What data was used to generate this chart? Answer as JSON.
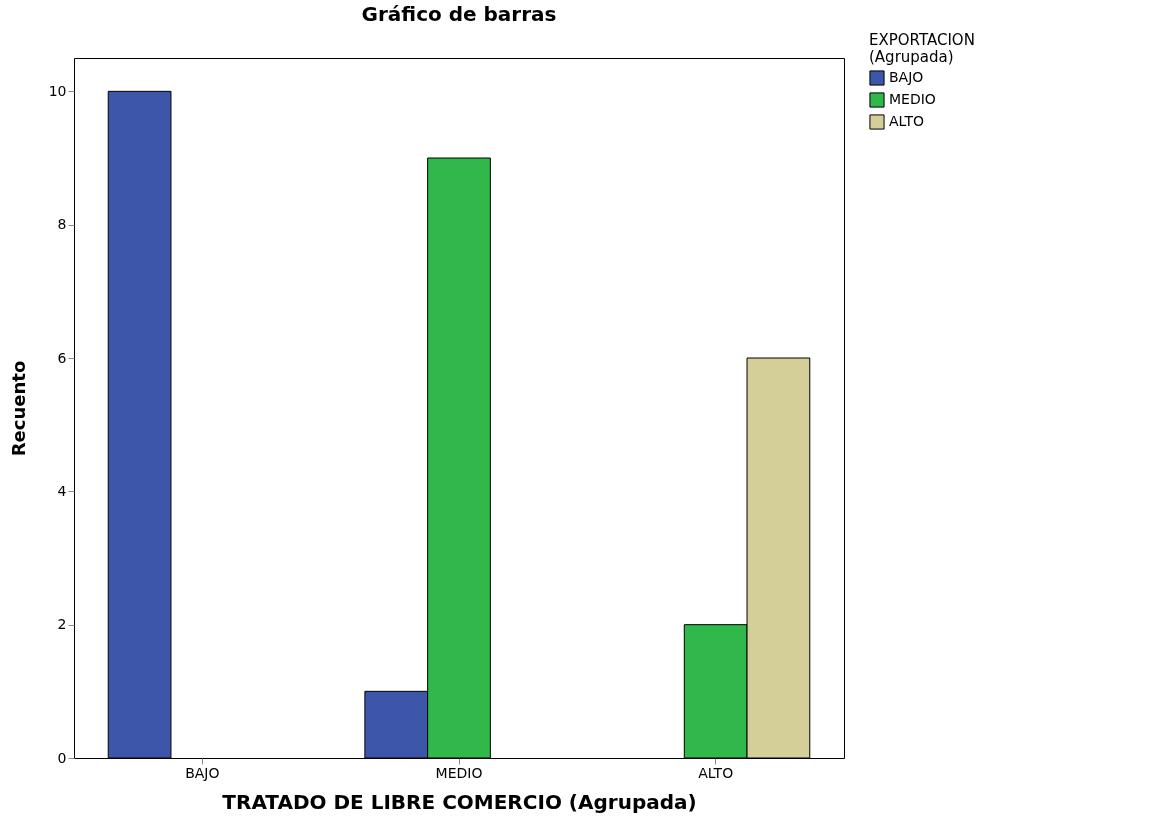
{
  "chart_data": {
    "type": "bar",
    "title": "Gráfico de barras",
    "xlabel": "TRATADO DE LIBRE COMERCIO (Agrupada)",
    "ylabel": "Recuento",
    "legend_title": "EXPORTACION\n(Agrupada)",
    "categories": [
      "BAJO",
      "MEDIO",
      "ALTO"
    ],
    "series": [
      {
        "name": "BAJO",
        "color": "#3e56aa",
        "values": [
          10,
          1,
          null
        ]
      },
      {
        "name": "MEDIO",
        "color": "#30b84a",
        "values": [
          null,
          9,
          2
        ]
      },
      {
        "name": "ALTO",
        "color": "#d4cf98",
        "values": [
          null,
          null,
          6
        ]
      }
    ],
    "ylim": [
      0,
      10.5
    ],
    "yticks": [
      0,
      2,
      4,
      6,
      8,
      10
    ],
    "grid": false,
    "legend": "top right"
  }
}
